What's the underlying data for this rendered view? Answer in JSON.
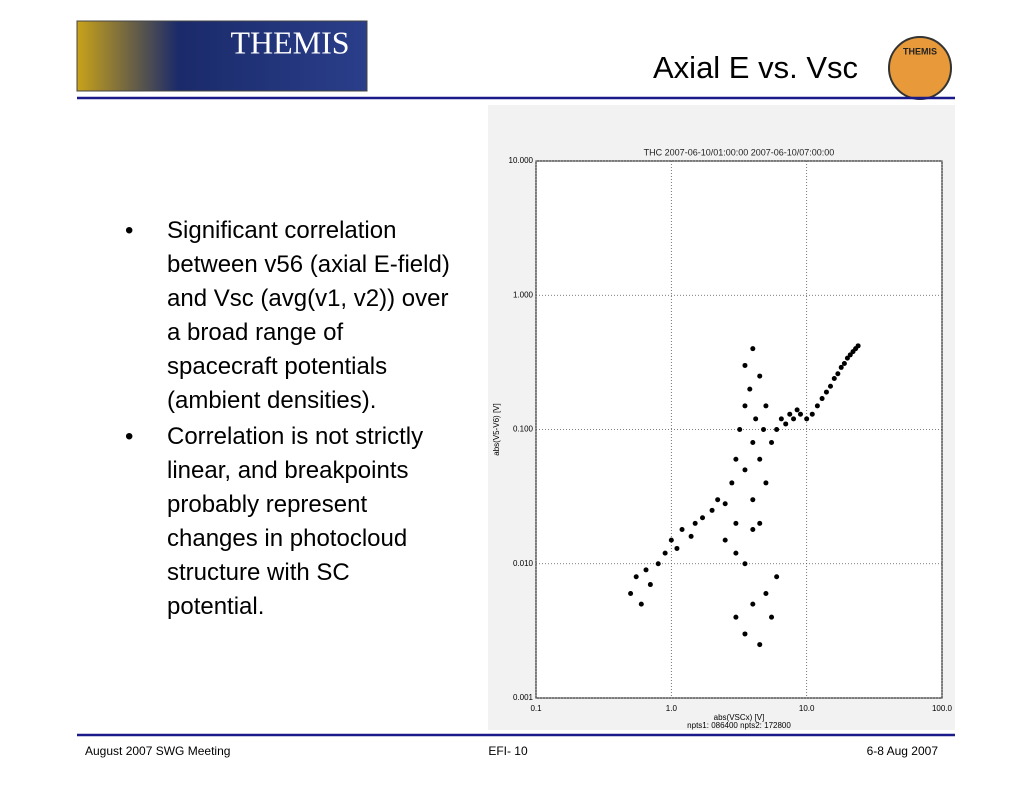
{
  "header": {
    "title": "Axial E vs. Vsc",
    "logo_text": "THEMIS",
    "badge_text": "THEMIS"
  },
  "bullets": [
    "Significant correlation between v56 (axial E-field) and Vsc (avg(v1, v2)) over a broad range of spacecraft potentials (ambient densities).",
    "Correlation is not strictly linear, and breakpoints probably represent changes in photocloud structure with SC potential."
  ],
  "chart_data": {
    "type": "scatter",
    "title": "THC 2007-06-10/01:00:00 2007-06-10/07:00:00",
    "x_label": "abs(VSCx) [V]",
    "y_label": "abs(V5-V6) [V]",
    "note": "npts1: 086400 npts2: 172800",
    "x_scale": "log",
    "y_scale": "log",
    "grid": true,
    "color": "#000000",
    "xlim": [
      0.1,
      100
    ],
    "ylim": [
      0.001,
      10
    ],
    "xticks": [
      0.1,
      {
        "value": 1,
        "label": "1.0"
      },
      {
        "value": 10,
        "label": "10.0"
      },
      {
        "value": 100,
        "label": "100.0"
      }
    ],
    "yticks": [
      0.001,
      {
        "value": 0.01,
        "label": "0.010"
      },
      {
        "value": 0.1,
        "label": "0.100"
      },
      {
        "value": 1,
        "label": "1.000"
      },
      {
        "value": 10,
        "label": "10.000"
      }
    ],
    "x": [
      0.5,
      0.55,
      0.6,
      0.65,
      0.7,
      0.8,
      0.9,
      1.0,
      1.1,
      1.2,
      1.4,
      1.5,
      1.7,
      2.0,
      2.2,
      2.5,
      2.8,
      3.0,
      3.0,
      3.2,
      3.5,
      3.5,
      3.5,
      3.8,
      4.0,
      4.0,
      4.0,
      4.2,
      4.5,
      4.5,
      4.8,
      5.0,
      5.0,
      5.5,
      6.0,
      6.5,
      7.0,
      7.5,
      8.0,
      8.5,
      9.0,
      10,
      11,
      12,
      13,
      14,
      15,
      16,
      17,
      18,
      19,
      20,
      21,
      22,
      23,
      24,
      3.0,
      3.5,
      4.0,
      4.5,
      5,
      5.5,
      6,
      2.5,
      3,
      3.5,
      4,
      4.5
    ],
    "y": [
      0.006,
      0.008,
      0.005,
      0.009,
      0.007,
      0.01,
      0.012,
      0.015,
      0.013,
      0.018,
      0.016,
      0.02,
      0.022,
      0.025,
      0.03,
      0.028,
      0.04,
      0.06,
      0.02,
      0.1,
      0.15,
      0.05,
      0.3,
      0.2,
      0.08,
      0.4,
      0.03,
      0.12,
      0.25,
      0.06,
      0.1,
      0.15,
      0.04,
      0.08,
      0.1,
      0.12,
      0.11,
      0.13,
      0.12,
      0.14,
      0.13,
      0.12,
      0.13,
      0.15,
      0.17,
      0.19,
      0.21,
      0.24,
      0.26,
      0.29,
      0.31,
      0.34,
      0.36,
      0.38,
      0.4,
      0.42,
      0.004,
      0.003,
      0.005,
      0.0025,
      0.006,
      0.004,
      0.008,
      0.015,
      0.012,
      0.01,
      0.018,
      0.02
    ]
  },
  "footer": {
    "left": "August 2007 SWG Meeting",
    "center": "EFI- 10",
    "right": "6-8 Aug 2007"
  }
}
